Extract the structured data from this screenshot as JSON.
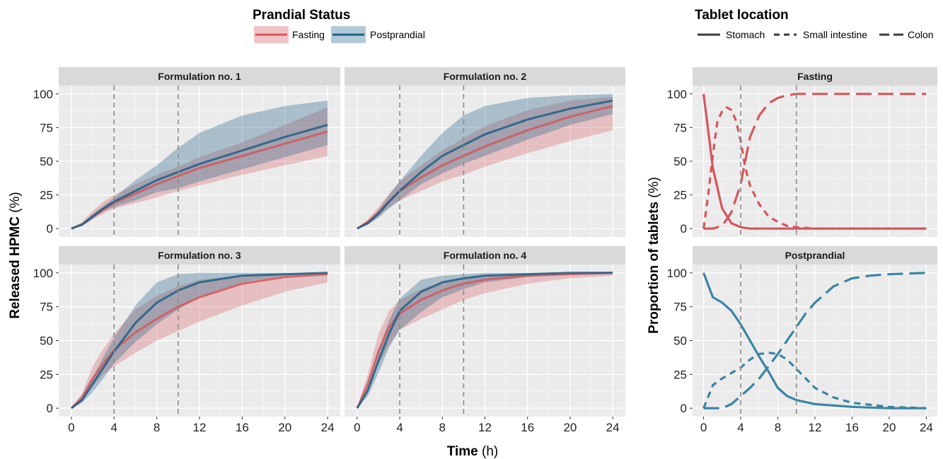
{
  "legends": {
    "prandial": {
      "title": "Prandial Status",
      "items": [
        {
          "label": "Fasting",
          "color": "#d4565c"
        },
        {
          "label": "Postprandial",
          "color": "#1f5f85"
        }
      ]
    },
    "location": {
      "title": "Tablet location",
      "items": [
        {
          "label": "Stomach",
          "linetype": "solid"
        },
        {
          "label": "Small intestine",
          "linetype": "dashed"
        },
        {
          "label": "Colon",
          "linetype": "longdash"
        }
      ]
    }
  },
  "axes": {
    "left_ylabel_main": "Released HPMC",
    "left_ylabel_unit": " (%)",
    "right_ylabel_main": "Proportion of tablets",
    "right_ylabel_unit": " (%)",
    "xlabel_main": "Time",
    "xlabel_unit": " (h)"
  },
  "chart_data": [
    {
      "type": "line",
      "title": "Formulation no. 1",
      "xlim": [
        0,
        24
      ],
      "ylim": [
        0,
        100
      ],
      "xticks": [
        0,
        4,
        8,
        12,
        16,
        20,
        24
      ],
      "yticks": [
        0,
        25,
        50,
        75,
        100
      ],
      "vlines": [
        4,
        10
      ],
      "x": [
        0,
        1,
        2,
        3,
        4,
        6,
        8,
        10,
        12,
        16,
        20,
        24
      ],
      "series": [
        {
          "name": "Fasting",
          "color": "#d4565c",
          "values": [
            0,
            3,
            9,
            14,
            19,
            26,
            33,
            39,
            45,
            54,
            63,
            72
          ],
          "lower": [
            0,
            2,
            7,
            11,
            15,
            19,
            23,
            28,
            32,
            40,
            47,
            54
          ],
          "upper": [
            0,
            5,
            13,
            20,
            25,
            33,
            40,
            46,
            53,
            64,
            77,
            90
          ]
        },
        {
          "name": "Postprandial",
          "color": "#1f5f85",
          "values": [
            0,
            3,
            9,
            15,
            20,
            28,
            36,
            42,
            48,
            58,
            68,
            77
          ],
          "lower": [
            0,
            2,
            7,
            13,
            16,
            21,
            27,
            30,
            35,
            44,
            53,
            62
          ],
          "upper": [
            0,
            4,
            11,
            17,
            23,
            36,
            47,
            60,
            71,
            84,
            91,
            95
          ]
        }
      ]
    },
    {
      "type": "line",
      "title": "Formulation no. 2",
      "xlim": [
        0,
        24
      ],
      "ylim": [
        0,
        100
      ],
      "xticks": [
        0,
        4,
        8,
        12,
        16,
        20,
        24
      ],
      "yticks": [
        0,
        25,
        50,
        75,
        100
      ],
      "vlines": [
        4,
        10
      ],
      "x": [
        0,
        1,
        2,
        3,
        4,
        6,
        8,
        10,
        12,
        16,
        20,
        24
      ],
      "series": [
        {
          "name": "Fasting",
          "color": "#d4565c",
          "values": [
            0,
            5,
            12,
            20,
            28,
            38,
            47,
            54,
            61,
            73,
            83,
            91
          ],
          "lower": [
            0,
            3,
            9,
            16,
            21,
            28,
            35,
            40,
            46,
            56,
            65,
            73
          ],
          "upper": [
            0,
            7,
            16,
            26,
            35,
            47,
            58,
            67,
            76,
            88,
            95,
            98
          ]
        },
        {
          "name": "Postprandial",
          "color": "#1f5f85",
          "values": [
            0,
            4,
            11,
            20,
            28,
            42,
            54,
            62,
            70,
            81,
            89,
            95
          ],
          "lower": [
            0,
            3,
            8,
            15,
            21,
            33,
            41,
            48,
            54,
            66,
            77,
            85
          ],
          "upper": [
            0,
            5,
            14,
            25,
            35,
            54,
            71,
            84,
            91,
            97,
            99,
            100
          ]
        }
      ]
    },
    {
      "type": "line",
      "title": "Formulation no. 3",
      "xlim": [
        0,
        24
      ],
      "ylim": [
        0,
        100
      ],
      "xticks": [
        0,
        4,
        8,
        12,
        16,
        20,
        24
      ],
      "yticks": [
        0,
        25,
        50,
        75,
        100
      ],
      "vlines": [
        4,
        10
      ],
      "x": [
        0,
        1,
        2,
        3,
        4,
        6,
        8,
        10,
        12,
        16,
        20,
        24
      ],
      "series": [
        {
          "name": "Fasting",
          "color": "#d4565c",
          "values": [
            0,
            8,
            22,
            33,
            43,
            56,
            66,
            75,
            82,
            92,
            97,
            99
          ],
          "lower": [
            0,
            5,
            16,
            25,
            31,
            41,
            50,
            57,
            64,
            76,
            86,
            93
          ],
          "upper": [
            0,
            11,
            31,
            44,
            55,
            73,
            83,
            90,
            95,
            98,
            99,
            100
          ]
        },
        {
          "name": "Postprandial",
          "color": "#1f5f85",
          "values": [
            0,
            6,
            18,
            30,
            42,
            63,
            78,
            87,
            93,
            98,
            99,
            100
          ],
          "lower": [
            0,
            4,
            12,
            22,
            33,
            49,
            62,
            73,
            82,
            93,
            98,
            99
          ],
          "upper": [
            0,
            8,
            23,
            38,
            52,
            76,
            93,
            99,
            100,
            100,
            100,
            100
          ]
        }
      ]
    },
    {
      "type": "line",
      "title": "Formulation no. 4",
      "xlim": [
        0,
        24
      ],
      "ylim": [
        0,
        100
      ],
      "xticks": [
        0,
        4,
        8,
        12,
        16,
        20,
        24
      ],
      "yticks": [
        0,
        25,
        50,
        75,
        100
      ],
      "vlines": [
        4,
        10
      ],
      "x": [
        0,
        1,
        2,
        3,
        4,
        6,
        8,
        10,
        12,
        16,
        20,
        24
      ],
      "series": [
        {
          "name": "Fasting",
          "color": "#d4565c",
          "values": [
            0,
            18,
            42,
            60,
            70,
            80,
            87,
            92,
            95,
            98,
            99,
            100
          ],
          "lower": [
            0,
            13,
            32,
            47,
            58,
            66,
            73,
            80,
            85,
            92,
            96,
            98
          ],
          "upper": [
            0,
            25,
            55,
            72,
            80,
            88,
            93,
            96,
            98,
            99,
            100,
            100
          ]
        },
        {
          "name": "Postprandial",
          "color": "#1f5f85",
          "values": [
            0,
            13,
            35,
            55,
            72,
            86,
            93,
            96,
            98,
            99,
            100,
            100
          ],
          "lower": [
            0,
            9,
            26,
            45,
            58,
            71,
            82,
            88,
            93,
            97,
            99,
            100
          ],
          "upper": [
            0,
            16,
            43,
            65,
            81,
            95,
            98,
            99,
            100,
            100,
            100,
            100
          ]
        }
      ]
    },
    {
      "type": "line",
      "title": "Fasting",
      "xlim": [
        0,
        24
      ],
      "ylim": [
        0,
        100
      ],
      "xticks": [
        0,
        4,
        8,
        12,
        16,
        20,
        24
      ],
      "yticks": [
        0,
        25,
        50,
        75,
        100
      ],
      "vlines": [
        4,
        10
      ],
      "color": "#d4565c",
      "series": [
        {
          "name": "Stomach",
          "linetype": "solid",
          "x": [
            0,
            1,
            2,
            3,
            4,
            5,
            6,
            8,
            10,
            12,
            16,
            20,
            24
          ],
          "values": [
            100,
            45,
            15,
            4,
            1,
            0,
            0,
            0,
            0,
            0,
            0,
            0,
            0
          ]
        },
        {
          "name": "Small intestine",
          "linetype": "dashed",
          "x": [
            0,
            0.5,
            1,
            1.5,
            2,
            2.5,
            3,
            3.5,
            4,
            4.5,
            5,
            6,
            7,
            8,
            9,
            10,
            12,
            16,
            20,
            24
          ],
          "values": [
            0,
            25,
            55,
            80,
            87,
            90,
            88,
            80,
            65,
            45,
            32,
            18,
            9,
            5,
            2,
            1,
            0,
            0,
            0,
            0
          ]
        },
        {
          "name": "Colon",
          "linetype": "longdash",
          "x": [
            0,
            1,
            2,
            3,
            4,
            5,
            6,
            7,
            8,
            9,
            10,
            12,
            16,
            20,
            24
          ],
          "values": [
            0,
            0,
            2,
            12,
            33,
            68,
            84,
            93,
            97,
            99,
            100,
            100,
            100,
            100,
            100
          ]
        }
      ]
    },
    {
      "type": "line",
      "title": "Postprandial",
      "xlim": [
        0,
        24
      ],
      "ylim": [
        0,
        100
      ],
      "xticks": [
        0,
        4,
        8,
        12,
        16,
        20,
        24
      ],
      "yticks": [
        0,
        25,
        50,
        75,
        100
      ],
      "vlines": [
        4,
        10
      ],
      "color": "#3a84a3",
      "series": [
        {
          "name": "Stomach",
          "linetype": "solid",
          "x": [
            0,
            1,
            2,
            3,
            4,
            5,
            6,
            7,
            8,
            9,
            10,
            12,
            14,
            16,
            20,
            24
          ],
          "values": [
            100,
            82,
            78,
            72,
            62,
            50,
            38,
            27,
            15,
            9,
            6,
            3,
            2,
            1,
            0,
            0
          ]
        },
        {
          "name": "Small intestine",
          "linetype": "dashed",
          "x": [
            0,
            1,
            2,
            3,
            4,
            5,
            6,
            7,
            8,
            9,
            10,
            11,
            12,
            14,
            16,
            20,
            24
          ],
          "values": [
            0,
            17,
            22,
            26,
            30,
            36,
            40,
            41,
            40,
            36,
            29,
            22,
            15,
            8,
            4,
            1,
            0
          ]
        },
        {
          "name": "Colon",
          "linetype": "longdash",
          "x": [
            0,
            1,
            2,
            3,
            4,
            5,
            6,
            7,
            8,
            9,
            10,
            11,
            12,
            14,
            16,
            18,
            20,
            24
          ],
          "values": [
            0,
            0,
            0,
            3,
            9,
            15,
            22,
            31,
            40,
            50,
            60,
            70,
            78,
            90,
            96,
            98,
            99,
            100
          ]
        }
      ]
    }
  ]
}
